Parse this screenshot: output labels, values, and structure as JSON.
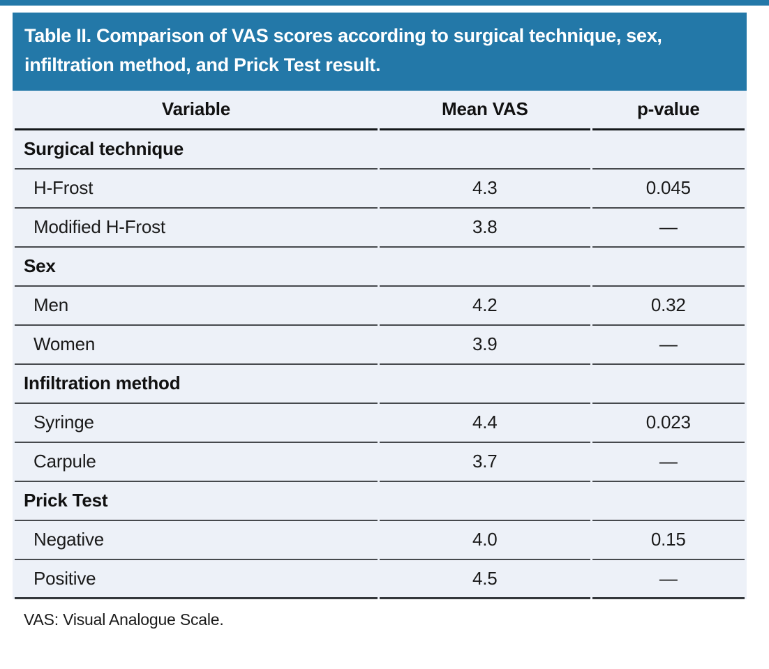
{
  "page": {
    "accent_color": "#2378a8",
    "row_bg_color": "#edf1f8",
    "divider_color": "#46494d"
  },
  "header": {
    "title": "Table II. Comparison of VAS scores according to surgical technique, sex, infiltration method, and Prick Test result."
  },
  "table": {
    "columns": [
      "Variable",
      "Mean VAS",
      "p-value"
    ],
    "sections": [
      {
        "label": "Surgical technique",
        "items": [
          {
            "variable": "H-Frost",
            "mean": "4.3",
            "p": "0.045"
          },
          {
            "variable": "Modified H-Frost",
            "mean": "3.8",
            "p": "—"
          }
        ]
      },
      {
        "label": "Sex",
        "items": [
          {
            "variable": "Men",
            "mean": "4.2",
            "p": "0.32"
          },
          {
            "variable": "Women",
            "mean": "3.9",
            "p": "—"
          }
        ]
      },
      {
        "label": "Infiltration method",
        "items": [
          {
            "variable": "Syringe",
            "mean": "4.4",
            "p": "0.023"
          },
          {
            "variable": "Carpule",
            "mean": "3.7",
            "p": "—"
          }
        ]
      },
      {
        "label": "Prick Test",
        "items": [
          {
            "variable": "Negative",
            "mean": "4.0",
            "p": "0.15"
          },
          {
            "variable": "Positive",
            "mean": "4.5",
            "p": "—"
          }
        ]
      }
    ]
  },
  "footnote": "VAS: Visual Analogue Scale."
}
